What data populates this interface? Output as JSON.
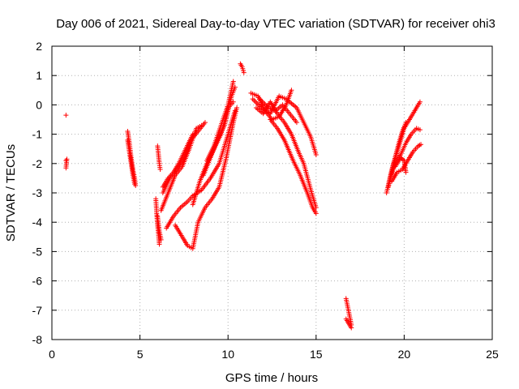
{
  "chart_data": {
    "type": "scatter",
    "title": "Day 006 of 2021, Sidereal Day-to-day VTEC variation (SDTVAR) for receiver ohi3",
    "xlabel": "GPS time / hours",
    "ylabel": "SDTVAR / TECUs",
    "xlim": [
      0,
      25
    ],
    "ylim": [
      -8,
      2
    ],
    "xticks": [
      0,
      5,
      10,
      15,
      20,
      25
    ],
    "yticks": [
      -8,
      -7,
      -6,
      -5,
      -4,
      -3,
      -2,
      -1,
      0,
      1,
      2
    ],
    "grid": true,
    "marker": "+",
    "color": "#ff0000",
    "segments": [
      {
        "name": "p1",
        "points": [
          [
            0.8,
            -0.35
          ]
        ]
      },
      {
        "name": "p2",
        "points": [
          [
            0.8,
            -1.9
          ],
          [
            0.85,
            -1.85
          ],
          [
            0.8,
            -2.15
          ]
        ]
      },
      {
        "name": "a1",
        "points": [
          [
            4.3,
            -0.9
          ],
          [
            4.4,
            -1.3
          ],
          [
            4.5,
            -1.8
          ],
          [
            4.6,
            -2.2
          ],
          [
            4.7,
            -2.5
          ],
          [
            4.75,
            -2.75
          ]
        ]
      },
      {
        "name": "a2",
        "points": [
          [
            4.3,
            -1.2
          ],
          [
            4.4,
            -1.6
          ],
          [
            4.5,
            -2.0
          ],
          [
            4.6,
            -2.4
          ],
          [
            4.7,
            -2.7
          ]
        ]
      },
      {
        "name": "b1",
        "points": [
          [
            5.9,
            -3.2
          ],
          [
            5.95,
            -3.7
          ],
          [
            6.0,
            -4.1
          ],
          [
            6.05,
            -4.4
          ],
          [
            6.1,
            -4.75
          ]
        ]
      },
      {
        "name": "b2",
        "points": [
          [
            6.0,
            -1.4
          ],
          [
            6.05,
            -1.7
          ],
          [
            6.1,
            -2.0
          ],
          [
            6.15,
            -2.2
          ]
        ]
      },
      {
        "name": "b3",
        "points": [
          [
            6.0,
            -3.8
          ],
          [
            6.1,
            -4.3
          ],
          [
            6.2,
            -4.6
          ]
        ]
      },
      {
        "name": "c1",
        "points": [
          [
            6.2,
            -3.6
          ],
          [
            6.6,
            -3.0
          ],
          [
            7.0,
            -2.4
          ],
          [
            7.4,
            -2.1
          ],
          [
            7.8,
            -1.5
          ],
          [
            8.2,
            -0.8
          ],
          [
            8.5,
            -0.7
          ]
        ]
      },
      {
        "name": "c2",
        "points": [
          [
            6.3,
            -3.0
          ],
          [
            6.7,
            -2.5
          ],
          [
            7.1,
            -2.2
          ],
          [
            7.5,
            -1.8
          ],
          [
            7.9,
            -1.2
          ],
          [
            8.3,
            -0.9
          ],
          [
            8.7,
            -0.6
          ]
        ]
      },
      {
        "name": "c3",
        "points": [
          [
            6.3,
            -2.8
          ],
          [
            6.6,
            -2.5
          ],
          [
            6.9,
            -2.3
          ],
          [
            7.2,
            -2.0
          ],
          [
            7.6,
            -1.5
          ],
          [
            8.0,
            -1.0
          ]
        ]
      },
      {
        "name": "d1",
        "points": [
          [
            6.5,
            -4.2
          ],
          [
            6.9,
            -3.8
          ],
          [
            7.3,
            -3.5
          ],
          [
            7.7,
            -3.3
          ],
          [
            8.0,
            -3.1
          ],
          [
            8.5,
            -2.9
          ],
          [
            9.0,
            -2.5
          ],
          [
            9.5,
            -2.0
          ],
          [
            10.0,
            -1.0
          ],
          [
            10.4,
            -0.2
          ]
        ]
      },
      {
        "name": "d2",
        "points": [
          [
            7.0,
            -4.1
          ],
          [
            7.4,
            -4.5
          ],
          [
            7.7,
            -4.8
          ],
          [
            8.0,
            -4.9
          ],
          [
            8.3,
            -4.0
          ],
          [
            8.7,
            -3.5
          ],
          [
            9.1,
            -3.2
          ],
          [
            9.5,
            -2.8
          ],
          [
            9.9,
            -1.8
          ],
          [
            10.3,
            -0.6
          ],
          [
            10.5,
            -0.1
          ]
        ]
      },
      {
        "name": "d3",
        "points": [
          [
            8.0,
            -3.4
          ],
          [
            8.4,
            -2.6
          ],
          [
            8.8,
            -2.0
          ],
          [
            9.2,
            -1.5
          ],
          [
            9.6,
            -1.0
          ],
          [
            10.0,
            -0.1
          ],
          [
            10.3,
            0.1
          ]
        ]
      },
      {
        "name": "d4",
        "points": [
          [
            8.6,
            -2.4
          ],
          [
            9.0,
            -1.8
          ],
          [
            9.4,
            -1.2
          ],
          [
            9.8,
            -0.7
          ],
          [
            10.2,
            0.3
          ],
          [
            10.4,
            0.6
          ]
        ]
      },
      {
        "name": "d5",
        "points": [
          [
            8.8,
            -1.9
          ],
          [
            9.2,
            -1.4
          ],
          [
            9.6,
            -0.7
          ],
          [
            10.0,
            0.0
          ],
          [
            10.3,
            0.8
          ]
        ]
      },
      {
        "name": "e1",
        "points": [
          [
            10.7,
            1.4
          ],
          [
            10.8,
            1.3
          ],
          [
            10.9,
            1.1
          ]
        ]
      },
      {
        "name": "f1",
        "points": [
          [
            11.3,
            0.4
          ],
          [
            11.7,
            0.3
          ],
          [
            12.1,
            -0.2
          ],
          [
            12.5,
            -0.5
          ],
          [
            12.9,
            -0.4
          ],
          [
            13.3,
            0.0
          ],
          [
            13.6,
            0.5
          ]
        ]
      },
      {
        "name": "f2",
        "points": [
          [
            11.4,
            0.2
          ],
          [
            11.9,
            -0.1
          ],
          [
            12.4,
            -0.3
          ],
          [
            12.9,
            0.3
          ],
          [
            13.3,
            0.2
          ],
          [
            13.9,
            -0.1
          ],
          [
            14.3,
            -0.6
          ],
          [
            14.7,
            -1.1
          ],
          [
            15.0,
            -1.7
          ]
        ]
      },
      {
        "name": "f3",
        "points": [
          [
            11.6,
            -0.1
          ],
          [
            12.0,
            -0.3
          ],
          [
            12.4,
            0.1
          ],
          [
            12.8,
            -0.3
          ],
          [
            13.2,
            -0.6
          ],
          [
            13.6,
            -1.0
          ],
          [
            14.0,
            -1.6
          ],
          [
            14.3,
            -2.0
          ],
          [
            14.7,
            -2.9
          ],
          [
            15.0,
            -3.5
          ]
        ]
      },
      {
        "name": "f4",
        "points": [
          [
            12.4,
            -0.5
          ],
          [
            12.8,
            -0.8
          ],
          [
            13.2,
            -1.2
          ],
          [
            13.7,
            -1.9
          ],
          [
            14.1,
            -2.4
          ],
          [
            14.5,
            -3.0
          ],
          [
            14.8,
            -3.5
          ],
          [
            15.0,
            -3.7
          ]
        ]
      },
      {
        "name": "f5",
        "points": [
          [
            11.8,
            0.2
          ],
          [
            12.3,
            -0.1
          ],
          [
            12.7,
            -0.2
          ],
          [
            13.1,
            0.0
          ],
          [
            13.5,
            -0.3
          ],
          [
            13.9,
            -0.6
          ]
        ]
      },
      {
        "name": "g1",
        "points": [
          [
            16.7,
            -6.6
          ],
          [
            16.8,
            -6.9
          ],
          [
            16.9,
            -7.2
          ],
          [
            17.0,
            -7.5
          ]
        ]
      },
      {
        "name": "g2",
        "points": [
          [
            16.7,
            -7.3
          ],
          [
            16.85,
            -7.45
          ],
          [
            17.0,
            -7.6
          ]
        ]
      },
      {
        "name": "h1",
        "points": [
          [
            19.0,
            -3.0
          ],
          [
            19.3,
            -2.2
          ],
          [
            19.6,
            -1.6
          ],
          [
            20.0,
            -0.8
          ],
          [
            20.4,
            -0.4
          ],
          [
            20.7,
            -0.1
          ],
          [
            20.9,
            0.1
          ]
        ]
      },
      {
        "name": "h2",
        "points": [
          [
            19.1,
            -2.8
          ],
          [
            19.4,
            -2.0
          ],
          [
            19.7,
            -1.3
          ],
          [
            19.9,
            -0.9
          ],
          [
            20.1,
            -0.6
          ]
        ]
      },
      {
        "name": "h3",
        "points": [
          [
            19.2,
            -2.5
          ],
          [
            19.5,
            -2.0
          ],
          [
            19.8,
            -1.7
          ],
          [
            20.1,
            -1.3
          ],
          [
            20.4,
            -1.0
          ],
          [
            20.7,
            -0.8
          ],
          [
            20.9,
            -0.85
          ]
        ]
      },
      {
        "name": "h4",
        "points": [
          [
            19.3,
            -2.6
          ],
          [
            19.6,
            -2.3
          ],
          [
            19.9,
            -2.2
          ],
          [
            20.2,
            -1.9
          ],
          [
            20.5,
            -1.6
          ],
          [
            20.8,
            -1.4
          ],
          [
            20.95,
            -1.35
          ]
        ]
      },
      {
        "name": "h5",
        "points": [
          [
            19.5,
            -2.1
          ],
          [
            19.8,
            -1.8
          ],
          [
            20.0,
            -1.9
          ],
          [
            20.1,
            -2.3
          ]
        ]
      }
    ]
  }
}
